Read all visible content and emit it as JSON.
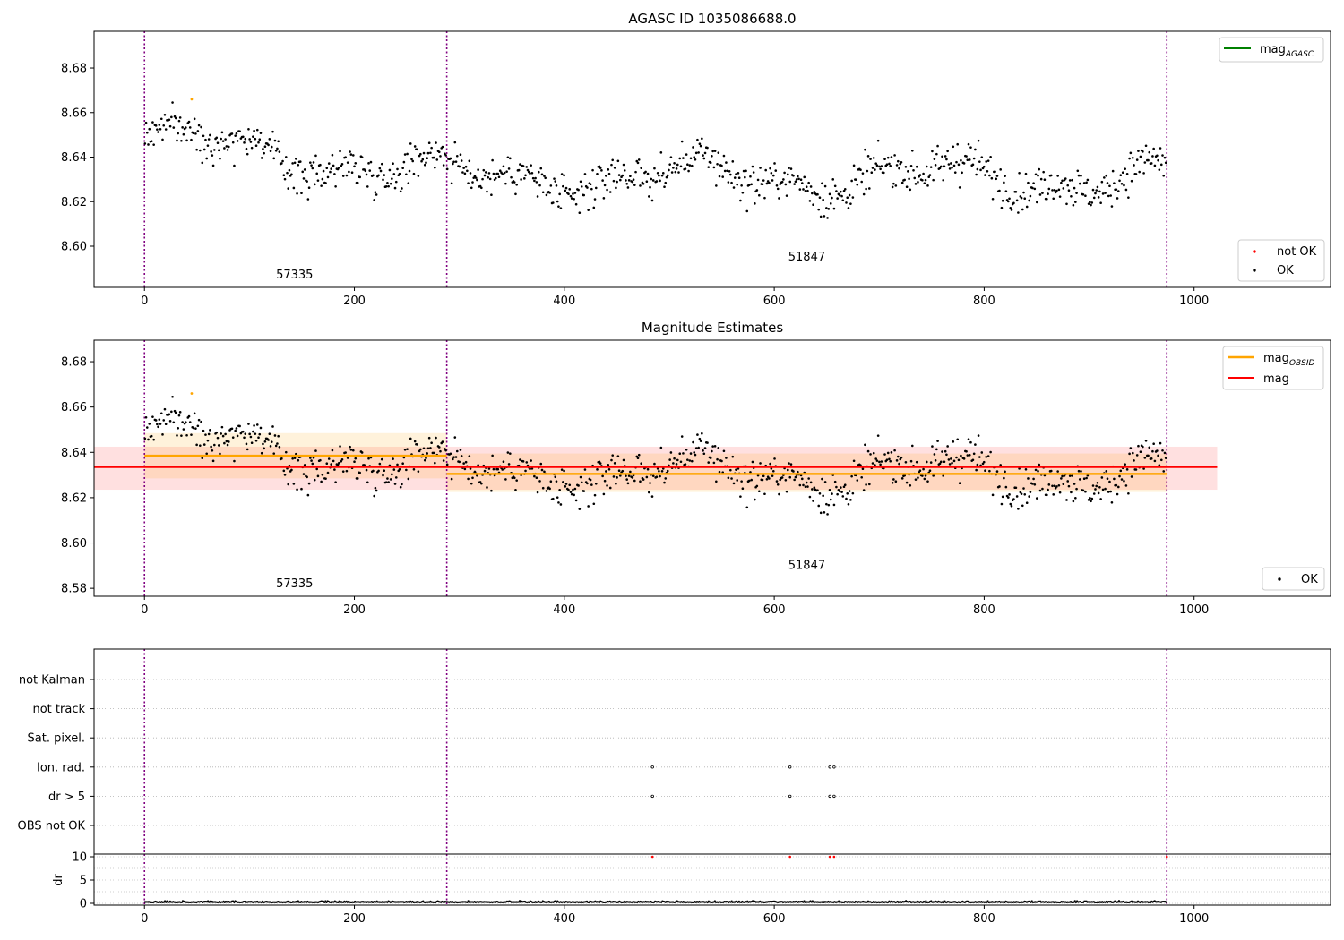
{
  "chart_data": [
    {
      "type": "scatter",
      "title": "AGASC ID 1035086688.0",
      "xlabel": "",
      "ylabel": "",
      "xlim": [
        -48,
        1130
      ],
      "ylim": [
        8.5815,
        8.6965
      ],
      "xticks": [
        0,
        200,
        400,
        600,
        800,
        1000
      ],
      "yticks": [
        8.6,
        8.62,
        8.64,
        8.66,
        8.68
      ],
      "ytick_labels": [
        "8.60",
        "8.62",
        "8.64",
        "8.66",
        "8.68"
      ],
      "grid": false,
      "obs_boundaries": [
        0,
        288,
        974
      ],
      "obs_labels": [
        {
          "text": "57335",
          "x": 143,
          "y": 8.5855
        },
        {
          "text": "51847",
          "x": 631,
          "y": 8.5935
        }
      ],
      "lines": [
        {
          "name": "mag_{AGASC}",
          "color": "#008000",
          "values": []
        }
      ],
      "series": [
        {
          "name": "not OK",
          "color": "#ff0000",
          "x": [],
          "y": []
        },
        {
          "name": "OK",
          "color": "#000000",
          "segments": [
            {
              "x": [
                0,
                288
              ],
              "mean": 8.6405,
              "spread": 0.0075,
              "trend": -0.016
            },
            {
              "x": [
                288,
                974
              ],
              "mean": 8.631,
              "spread": 0.008,
              "trend": 0.0
            }
          ]
        },
        {
          "name": "",
          "color": "#ffa500",
          "x": [
            45
          ],
          "y": [
            8.666
          ]
        }
      ],
      "legends": [
        {
          "placement": "top-right",
          "entries": [
            "mag_{AGASC}"
          ]
        },
        {
          "placement": "bottom-right",
          "entries": [
            "not OK",
            "OK"
          ]
        }
      ]
    },
    {
      "type": "scatter",
      "title": "Magnitude Estimates",
      "xlabel": "",
      "ylabel": "",
      "xlim": [
        -48,
        1130
      ],
      "ylim": [
        8.5765,
        8.6895
      ],
      "xticks": [
        0,
        200,
        400,
        600,
        800,
        1000
      ],
      "yticks": [
        8.58,
        8.6,
        8.62,
        8.64,
        8.66,
        8.68
      ],
      "ytick_labels": [
        "8.58",
        "8.60",
        "8.62",
        "8.64",
        "8.66",
        "8.68"
      ],
      "grid": false,
      "obs_boundaries": [
        0,
        288,
        974
      ],
      "obs_labels": [
        {
          "text": "57335",
          "x": 143,
          "y": 8.5805
        },
        {
          "text": "51847",
          "x": 631,
          "y": 8.5885
        }
      ],
      "bands": [
        {
          "name": "mag_{OBSID}",
          "color": "#ffa500",
          "x": [
            0,
            288
          ],
          "value": 8.6385,
          "low": 8.6285,
          "high": 8.6485
        },
        {
          "name": "mag_{OBSID}",
          "color": "#ffa500",
          "x": [
            288,
            974
          ],
          "value": 8.6305,
          "low": 8.6225,
          "high": 8.6395
        },
        {
          "name": "mag",
          "color": "#ff0000",
          "x": [
            -48,
            1022
          ],
          "value": 8.6335,
          "low": 8.6235,
          "high": 8.6425
        }
      ],
      "series": [
        {
          "name": "OK",
          "color": "#000000",
          "segments": [
            {
              "x": [
                0,
                288
              ],
              "mean": 8.6405,
              "spread": 0.0075,
              "trend": -0.016
            },
            {
              "x": [
                288,
                974
              ],
              "mean": 8.631,
              "spread": 0.008,
              "trend": 0.0
            }
          ]
        },
        {
          "name": "",
          "color": "#ffa500",
          "x": [
            45
          ],
          "y": [
            8.666
          ]
        }
      ],
      "legends": [
        {
          "placement": "top-right",
          "entries": [
            "mag_{OBSID}",
            "mag"
          ]
        },
        {
          "placement": "bottom-right",
          "entries": [
            "OK"
          ]
        }
      ]
    },
    {
      "type": "scatter",
      "title": "",
      "xlabel": "",
      "ylabel": "",
      "xlim": [
        -48,
        1130
      ],
      "categories": [
        "not Kalman",
        "not track",
        "Sat. pixel.",
        "Ion. rad.",
        "dr > 5",
        "OBS not OK"
      ],
      "grid": "dotted",
      "obs_boundaries": [
        0,
        288,
        974
      ],
      "flags": [
        {
          "category": "Ion. rad.",
          "x": [
            484,
            615,
            653,
            657
          ]
        },
        {
          "category": "dr > 5",
          "x": [
            484,
            615,
            653,
            657
          ]
        }
      ]
    },
    {
      "type": "scatter",
      "title": "",
      "xlabel": "",
      "ylabel": "dr",
      "xlim": [
        -48,
        1130
      ],
      "ylim": [
        -1,
        11
      ],
      "xticks": [
        0,
        200,
        400,
        600,
        800,
        1000
      ],
      "yticks": [
        0,
        5,
        10
      ],
      "grid": "dotted",
      "obs_boundaries": [
        0,
        288,
        974
      ],
      "series": [
        {
          "name": "dr",
          "color": "#000000",
          "x": [
            0,
            974
          ],
          "level": 0.2
        },
        {
          "name": "dr > 5",
          "color": "#ff0000",
          "x": [
            484,
            615,
            653,
            657,
            974
          ],
          "y": [
            10,
            10,
            10,
            10,
            10
          ]
        }
      ]
    }
  ]
}
